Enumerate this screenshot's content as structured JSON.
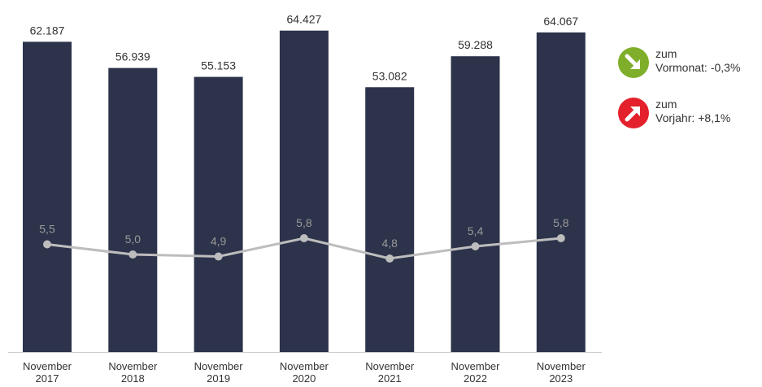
{
  "colors": {
    "bar": "#2c334a",
    "line": "#bdbdbd",
    "line_label": "#9a9a9a",
    "bar_label": "#333333",
    "axis_label": "#333333",
    "down_badge": "#7fae2a",
    "up_badge": "#e3202b"
  },
  "chart_data": {
    "type": "bar",
    "categories": [
      "November 2017",
      "November 2018",
      "November 2019",
      "November 2020",
      "November 2021",
      "November 2022",
      "November 2023"
    ],
    "category_lines": [
      [
        "November",
        "2017"
      ],
      [
        "November",
        "2018"
      ],
      [
        "November",
        "2019"
      ],
      [
        "November",
        "2020"
      ],
      [
        "November",
        "2021"
      ],
      [
        "November",
        "2022"
      ],
      [
        "November",
        "2023"
      ]
    ],
    "series": [
      {
        "type": "bar",
        "values": [
          62187,
          56939,
          55153,
          64427,
          53082,
          59288,
          64067
        ],
        "labels": [
          "62.187",
          "56.939",
          "55.153",
          "64.427",
          "53.082",
          "59.288",
          "64.067"
        ]
      },
      {
        "type": "line",
        "values": [
          5.5,
          5.0,
          4.9,
          5.8,
          4.8,
          5.4,
          5.8
        ],
        "labels": [
          "5,5",
          "5,0",
          "4,9",
          "5,8",
          "4,8",
          "5,4",
          "5,8"
        ]
      }
    ],
    "title": "",
    "xlabel": "",
    "ylabel": "",
    "ylim": [
      0,
      66000
    ],
    "grid": false
  },
  "indicators": [
    {
      "icon": "arrow-down-right-icon",
      "line1": "zum",
      "label": "Vormonat:",
      "value": "-0,3%"
    },
    {
      "icon": "arrow-up-right-icon",
      "line1": "zum",
      "label": "Vorjahr:",
      "value": "+8,1%"
    }
  ]
}
